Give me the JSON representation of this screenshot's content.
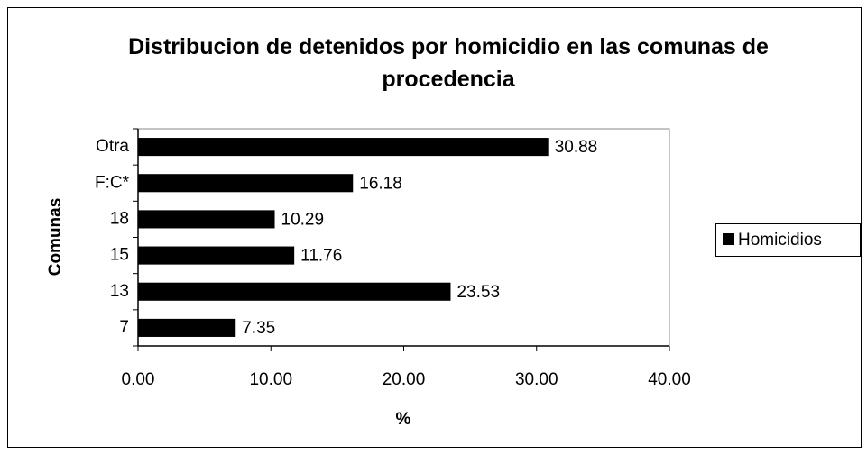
{
  "chart_data": {
    "type": "barh",
    "title": "Distribucion de detenidos por homicidio en las comunas de procedencia",
    "x_label": "%",
    "y_label": "Comunas",
    "categories": [
      "7",
      "13",
      "15",
      "18",
      "F:C*",
      "Otra"
    ],
    "series": [
      {
        "name": "Homicidios",
        "color": "#000000",
        "values": [
          7.35,
          23.53,
          11.76,
          10.29,
          16.18,
          30.88
        ]
      }
    ],
    "xlim": [
      0,
      40
    ],
    "xticks": [
      {
        "value": 0,
        "label": "0.00"
      },
      {
        "value": 10,
        "label": "10.00"
      },
      {
        "value": 20,
        "label": "20.00"
      },
      {
        "value": 30,
        "label": "30.00"
      },
      {
        "value": 40,
        "label": "40.00"
      }
    ],
    "legend": "right"
  }
}
